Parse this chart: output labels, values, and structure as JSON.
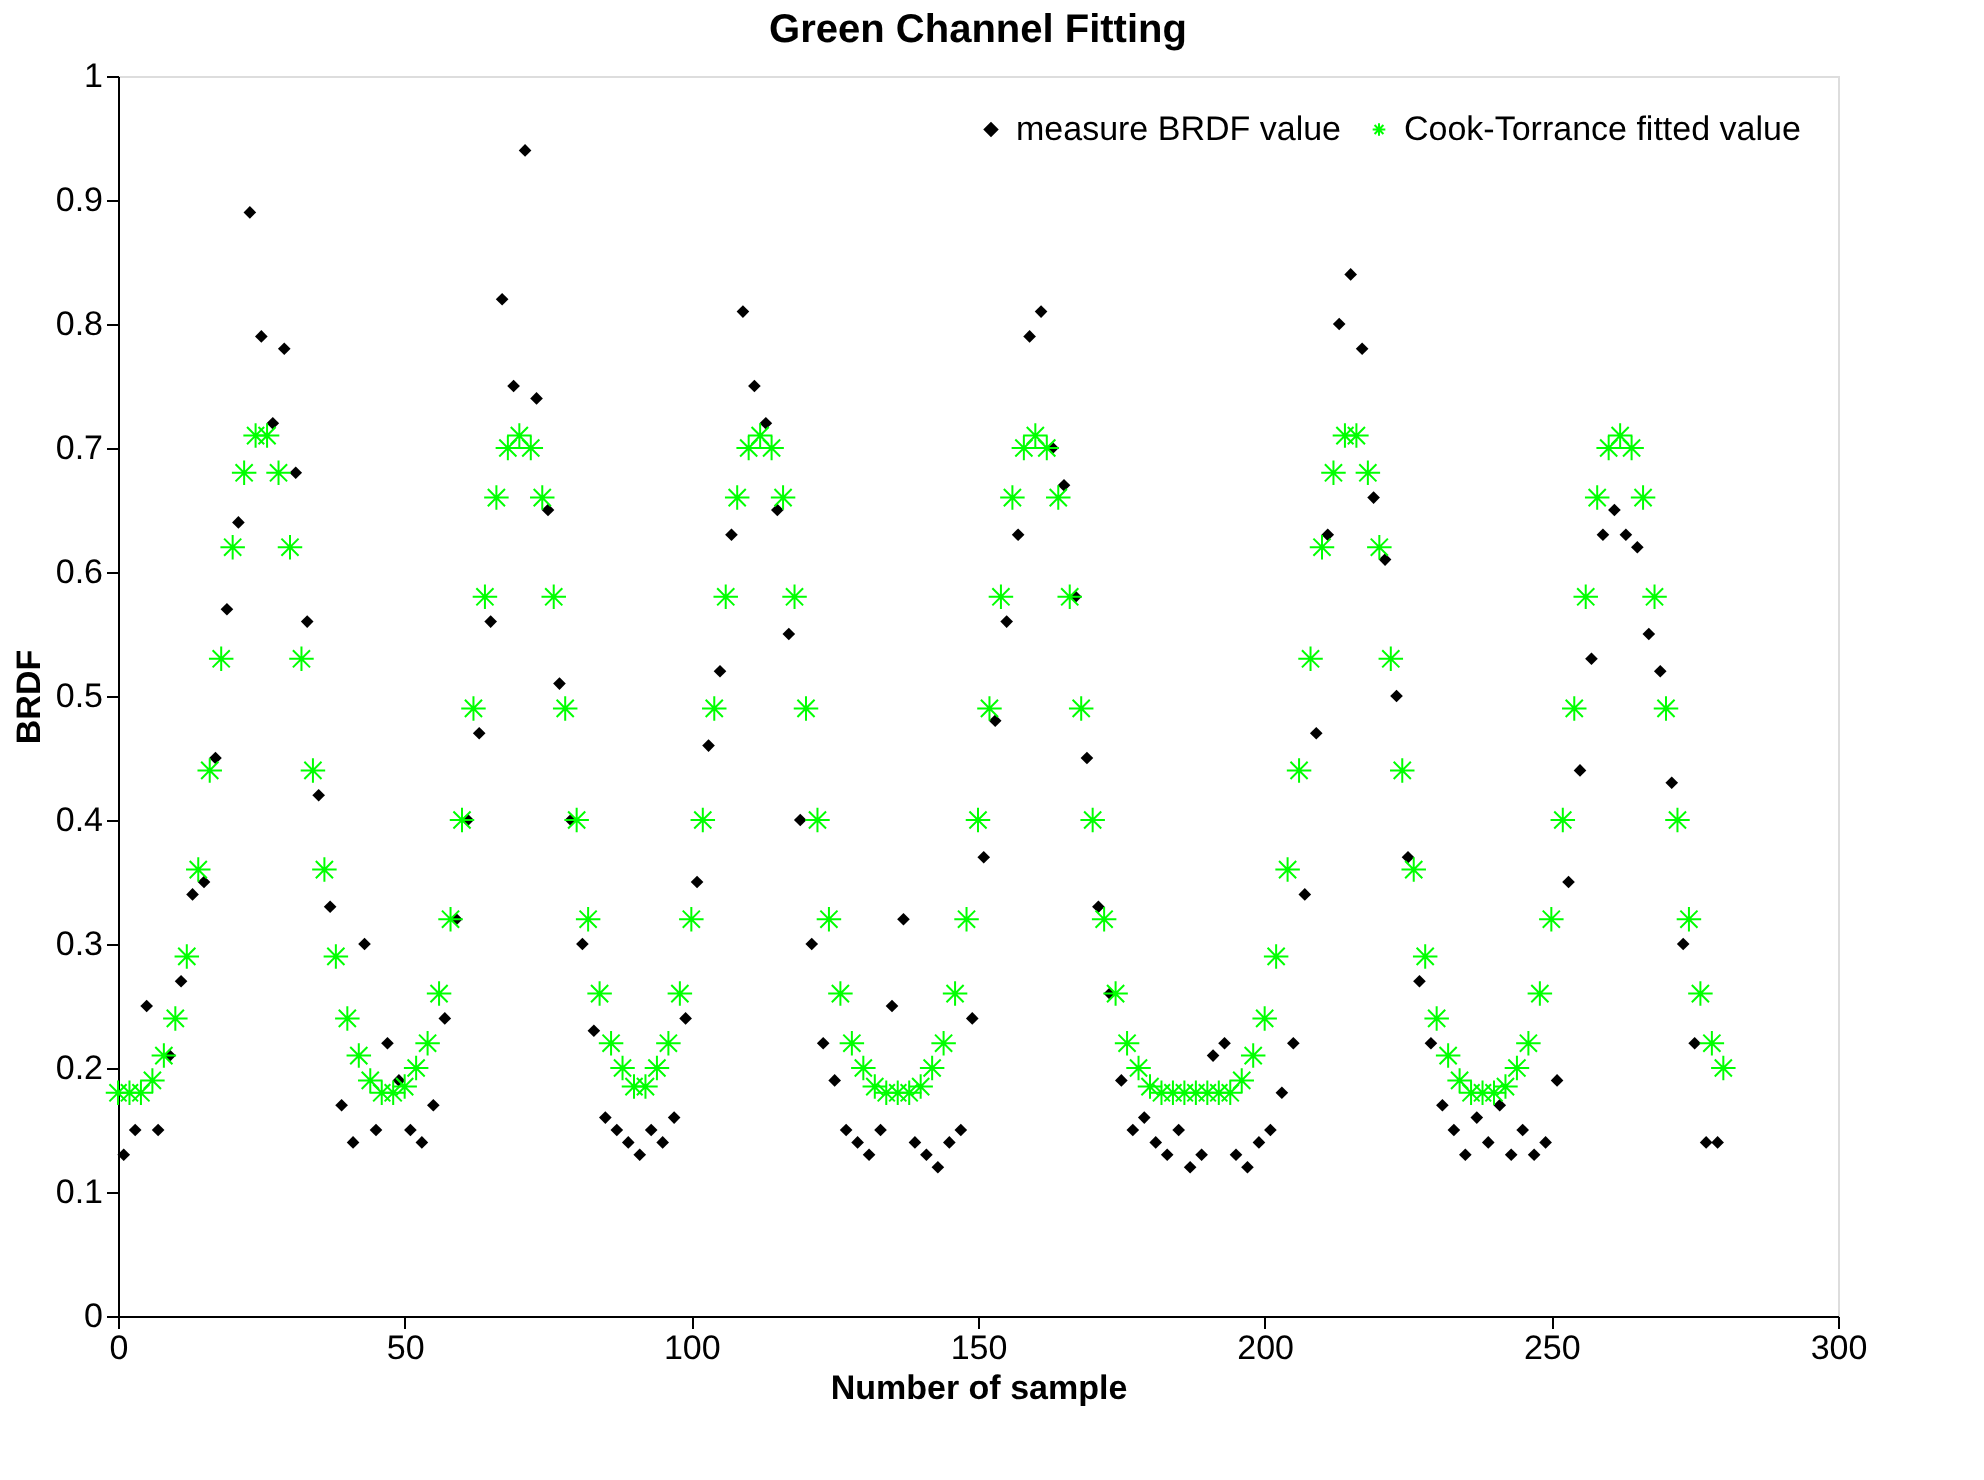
{
  "chart_data": {
    "type": "scatter",
    "title": "Green Channel Fitting",
    "xlabel": "Number of sample",
    "ylabel": "BRDF",
    "xlim": [
      0,
      300
    ],
    "xticks": [
      0,
      50,
      100,
      150,
      200,
      250,
      300
    ],
    "ylim": [
      0,
      1
    ],
    "yticks": [
      0,
      0.1,
      0.2,
      0.3,
      0.4,
      0.5,
      0.6,
      0.7,
      0.8,
      0.9,
      1
    ],
    "grid": false,
    "legend": "top right",
    "series": [
      {
        "name": "measure BRDF value",
        "color": "#000000",
        "marker": "diamond",
        "x": [
          1,
          3,
          5,
          7,
          9,
          11,
          13,
          15,
          17,
          19,
          21,
          23,
          25,
          27,
          29,
          31,
          33,
          35,
          37,
          39,
          41,
          43,
          45,
          47,
          49,
          51,
          53,
          55,
          57,
          59,
          61,
          63,
          65,
          67,
          69,
          71,
          73,
          75,
          77,
          79,
          81,
          83,
          85,
          87,
          89,
          91,
          93,
          95,
          97,
          99,
          101,
          103,
          105,
          107,
          109,
          111,
          113,
          115,
          117,
          119,
          121,
          123,
          125,
          127,
          129,
          131,
          133,
          135,
          137,
          139,
          141,
          143,
          145,
          147,
          149,
          151,
          153,
          155,
          157,
          159,
          161,
          163,
          165,
          167,
          169,
          171,
          173,
          175,
          177,
          179,
          181,
          183,
          185,
          187,
          189,
          191,
          193,
          195,
          197,
          199,
          201,
          203,
          205,
          207,
          209,
          211,
          213,
          215,
          217,
          219,
          221,
          223,
          225,
          227,
          229,
          231,
          233,
          235,
          237,
          239,
          241,
          243,
          245,
          247,
          249,
          251,
          253,
          255,
          257,
          259,
          261,
          263,
          265,
          267,
          269,
          271,
          273,
          275,
          277,
          279
        ],
        "values": [
          0.13,
          0.15,
          0.25,
          0.15,
          0.21,
          0.27,
          0.34,
          0.35,
          0.45,
          0.57,
          0.64,
          0.89,
          0.79,
          0.72,
          0.78,
          0.68,
          0.56,
          0.42,
          0.33,
          0.17,
          0.14,
          0.3,
          0.15,
          0.22,
          0.19,
          0.15,
          0.14,
          0.17,
          0.24,
          0.32,
          0.4,
          0.47,
          0.56,
          0.82,
          0.75,
          0.94,
          0.74,
          0.65,
          0.51,
          0.4,
          0.3,
          0.23,
          0.16,
          0.15,
          0.14,
          0.13,
          0.15,
          0.14,
          0.16,
          0.24,
          0.35,
          0.46,
          0.52,
          0.63,
          0.81,
          0.75,
          0.72,
          0.65,
          0.55,
          0.4,
          0.3,
          0.22,
          0.19,
          0.15,
          0.14,
          0.13,
          0.15,
          0.25,
          0.32,
          0.14,
          0.13,
          0.12,
          0.14,
          0.15,
          0.24,
          0.37,
          0.48,
          0.56,
          0.63,
          0.79,
          0.81,
          0.7,
          0.67,
          0.58,
          0.45,
          0.33,
          0.26,
          0.19,
          0.15,
          0.16,
          0.14,
          0.13,
          0.15,
          0.12,
          0.13,
          0.21,
          0.22,
          0.13,
          0.12,
          0.14,
          0.15,
          0.18,
          0.22,
          0.34,
          0.47,
          0.63,
          0.8,
          0.84,
          0.78,
          0.66,
          0.61,
          0.5,
          0.37,
          0.27,
          0.22,
          0.17,
          0.15,
          0.13,
          0.16,
          0.14,
          0.17,
          0.13,
          0.15,
          0.13,
          0.14,
          0.19,
          0.35,
          0.44,
          0.53,
          0.63,
          0.65,
          0.63,
          0.62,
          0.55,
          0.52,
          0.43,
          0.3,
          0.22,
          0.14,
          0.14
        ]
      },
      {
        "name": "Cook-Torrance fitted value",
        "color": "#00ff00",
        "marker": "cross",
        "x": [
          0,
          2,
          4,
          6,
          8,
          10,
          12,
          14,
          16,
          18,
          20,
          22,
          24,
          26,
          28,
          30,
          32,
          34,
          36,
          38,
          40,
          42,
          44,
          46,
          48,
          50,
          52,
          54,
          56,
          58,
          60,
          62,
          64,
          66,
          68,
          70,
          72,
          74,
          76,
          78,
          80,
          82,
          84,
          86,
          88,
          90,
          92,
          94,
          96,
          98,
          100,
          102,
          104,
          106,
          108,
          110,
          112,
          114,
          116,
          118,
          120,
          122,
          124,
          126,
          128,
          130,
          132,
          134,
          136,
          138,
          140,
          142,
          144,
          146,
          148,
          150,
          152,
          154,
          156,
          158,
          160,
          162,
          164,
          166,
          168,
          170,
          172,
          174,
          176,
          178,
          180,
          182,
          184,
          186,
          188,
          190,
          192,
          194,
          196,
          198,
          200,
          202,
          204,
          206,
          208,
          210,
          212,
          214,
          216,
          218,
          220,
          222,
          224,
          226,
          228,
          230,
          232,
          234,
          236,
          238,
          240,
          242,
          244,
          246,
          248,
          250,
          252,
          254,
          256,
          258,
          260,
          262,
          264,
          266,
          268,
          270,
          272,
          274,
          276,
          278,
          280
        ],
        "values": [
          0.18,
          0.18,
          0.18,
          0.19,
          0.21,
          0.24,
          0.29,
          0.36,
          0.44,
          0.53,
          0.62,
          0.68,
          0.71,
          0.71,
          0.68,
          0.62,
          0.53,
          0.44,
          0.36,
          0.29,
          0.24,
          0.21,
          0.19,
          0.18,
          0.18,
          0.185,
          0.2,
          0.22,
          0.26,
          0.32,
          0.4,
          0.49,
          0.58,
          0.66,
          0.7,
          0.71,
          0.7,
          0.66,
          0.58,
          0.49,
          0.4,
          0.32,
          0.26,
          0.22,
          0.2,
          0.185,
          0.185,
          0.2,
          0.22,
          0.26,
          0.32,
          0.4,
          0.49,
          0.58,
          0.66,
          0.7,
          0.71,
          0.7,
          0.66,
          0.58,
          0.49,
          0.4,
          0.32,
          0.26,
          0.22,
          0.2,
          0.185,
          0.18,
          0.18,
          0.18,
          0.185,
          0.2,
          0.22,
          0.26,
          0.32,
          0.4,
          0.49,
          0.58,
          0.66,
          0.7,
          0.71,
          0.7,
          0.66,
          0.58,
          0.49,
          0.4,
          0.32,
          0.26,
          0.22,
          0.2,
          0.185,
          0.18,
          0.18,
          0.18,
          0.18,
          0.18,
          0.18,
          0.18,
          0.19,
          0.21,
          0.24,
          0.29,
          0.36,
          0.44,
          0.53,
          0.62,
          0.68,
          0.71,
          0.71,
          0.68,
          0.62,
          0.53,
          0.44,
          0.36,
          0.29,
          0.24,
          0.21,
          0.19,
          0.18,
          0.18,
          0.18,
          0.185,
          0.2,
          0.22,
          0.26,
          0.32,
          0.4,
          0.49,
          0.58,
          0.66,
          0.7,
          0.71,
          0.7,
          0.66,
          0.58,
          0.49,
          0.4,
          0.32,
          0.26,
          0.22,
          0.2
        ]
      }
    ]
  }
}
